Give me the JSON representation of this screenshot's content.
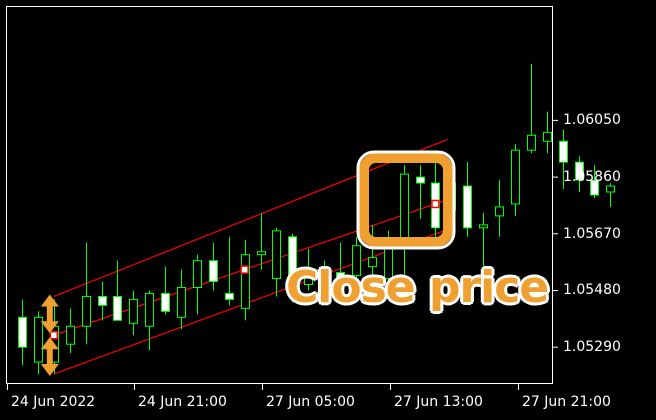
{
  "price_axis": {
    "labels": [
      {
        "text": "1.06050",
        "value": 1.0605
      },
      {
        "text": "1.05860",
        "value": 1.0586
      },
      {
        "text": "1.05670",
        "value": 1.0567
      },
      {
        "text": "1.05480",
        "value": 1.0548
      },
      {
        "text": "1.05290",
        "value": 1.0529
      }
    ]
  },
  "time_axis": {
    "labels": [
      "24 Jun 2022",
      "24 Jun 21:00",
      "27 Jun 05:00",
      "27 Jun 13:00",
      "27 Jun 21:00"
    ]
  },
  "annotation": {
    "text": "Close price",
    "color": "#f0a030",
    "highlight": "close-price-marker"
  },
  "colors": {
    "background": "#000000",
    "frame": "#ffffff",
    "bull_candle": "#00ff00",
    "channel": "#ff0000",
    "arrow": "#f0a030"
  },
  "chart_data": {
    "type": "candlestick",
    "y_range": [
      1.0517,
      1.0643
    ],
    "x_labels": [
      "24 Jun 2022",
      "24 Jun 21:00",
      "27 Jun 05:00",
      "27 Jun 13:00",
      "27 Jun 21:00"
    ],
    "candles": [
      {
        "o": 1.0539,
        "h": 1.0545,
        "l": 1.0523,
        "c": 1.0529
      },
      {
        "o": 1.0524,
        "h": 1.0541,
        "l": 1.052,
        "c": 1.0539
      },
      {
        "o": 1.0524,
        "h": 1.0545,
        "l": 1.052,
        "c": 1.0536
      },
      {
        "o": 1.053,
        "h": 1.0542,
        "l": 1.0527,
        "c": 1.0536
      },
      {
        "o": 1.0536,
        "h": 1.0564,
        "l": 1.053,
        "c": 1.0546
      },
      {
        "o": 1.0546,
        "h": 1.0551,
        "l": 1.0538,
        "c": 1.0543
      },
      {
        "o": 1.0546,
        "h": 1.0558,
        "l": 1.0538,
        "c": 1.0538
      },
      {
        "o": 1.0537,
        "h": 1.0548,
        "l": 1.0533,
        "c": 1.0545
      },
      {
        "o": 1.0536,
        "h": 1.0548,
        "l": 1.0528,
        "c": 1.0547
      },
      {
        "o": 1.0547,
        "h": 1.0556,
        "l": 1.054,
        "c": 1.0541
      },
      {
        "o": 1.0539,
        "h": 1.0555,
        "l": 1.0535,
        "c": 1.0549
      },
      {
        "o": 1.0549,
        "h": 1.056,
        "l": 1.054,
        "c": 1.0558
      },
      {
        "o": 1.0558,
        "h": 1.0564,
        "l": 1.0548,
        "c": 1.0551
      },
      {
        "o": 1.0547,
        "h": 1.0566,
        "l": 1.0543,
        "c": 1.0545
      },
      {
        "o": 1.0542,
        "h": 1.0565,
        "l": 1.0538,
        "c": 1.056
      },
      {
        "o": 1.056,
        "h": 1.0574,
        "l": 1.0555,
        "c": 1.0561
      },
      {
        "o": 1.0552,
        "h": 1.0569,
        "l": 1.0546,
        "c": 1.0568
      },
      {
        "o": 1.0566,
        "h": 1.0567,
        "l": 1.0544,
        "c": 1.0552
      },
      {
        "o": 1.055,
        "h": 1.0562,
        "l": 1.0548,
        "c": 1.0554
      },
      {
        "o": 1.0554,
        "h": 1.0558,
        "l": 1.0545,
        "c": 1.055
      },
      {
        "o": 1.0554,
        "h": 1.0564,
        "l": 1.055,
        "c": 1.0551
      },
      {
        "o": 1.0553,
        "h": 1.0566,
        "l": 1.0549,
        "c": 1.0563
      },
      {
        "o": 1.0556,
        "h": 1.057,
        "l": 1.0552,
        "c": 1.0559
      },
      {
        "o": 1.0552,
        "h": 1.0568,
        "l": 1.055,
        "c": 1.0565
      },
      {
        "o": 1.0565,
        "h": 1.059,
        "l": 1.0552,
        "c": 1.0587
      },
      {
        "o": 1.0586,
        "h": 1.059,
        "l": 1.0572,
        "c": 1.0584
      },
      {
        "o": 1.0584,
        "h": 1.0591,
        "l": 1.0565,
        "c": 1.0569
      },
      {
        "o": 1.0575,
        "h": 1.0587,
        "l": 1.0565,
        "c": 1.0584
      },
      {
        "o": 1.0583,
        "h": 1.0591,
        "l": 1.0566,
        "c": 1.0569
      },
      {
        "o": 1.0569,
        "h": 1.0574,
        "l": 1.0555,
        "c": 1.057
      },
      {
        "o": 1.0573,
        "h": 1.0585,
        "l": 1.0566,
        "c": 1.0576
      },
      {
        "o": 1.0577,
        "h": 1.0597,
        "l": 1.0573,
        "c": 1.0595
      },
      {
        "o": 1.0595,
        "h": 1.0624,
        "l": 1.0594,
        "c": 1.06
      },
      {
        "o": 1.0598,
        "h": 1.0608,
        "l": 1.0594,
        "c": 1.0601
      },
      {
        "o": 1.0598,
        "h": 1.0602,
        "l": 1.0582,
        "c": 1.0591
      },
      {
        "o": 1.0591,
        "h": 1.0593,
        "l": 1.0581,
        "c": 1.0585
      },
      {
        "o": 1.0585,
        "h": 1.059,
        "l": 1.0579,
        "c": 1.058
      },
      {
        "o": 1.0581,
        "h": 1.0584,
        "l": 1.0576,
        "c": 1.0583
      }
    ],
    "channel": {
      "middle": {
        "from": {
          "bar": 2,
          "price": 1.0533
        },
        "to": {
          "bar": 26,
          "price": 1.0577
        }
      },
      "upper": {
        "from": {
          "bar": 2,
          "price": 1.0546
        },
        "to": {
          "bar": 26,
          "price": 1.0597
        }
      },
      "lower": {
        "from": {
          "bar": 2,
          "price": 1.052
        },
        "to": {
          "bar": 26,
          "price": 1.0567
        }
      }
    },
    "close_markers": [
      {
        "bar": 2,
        "price": 1.0533
      },
      {
        "bar": 14,
        "price": 1.0555
      },
      {
        "bar": 26,
        "price": 1.0577
      }
    ]
  }
}
